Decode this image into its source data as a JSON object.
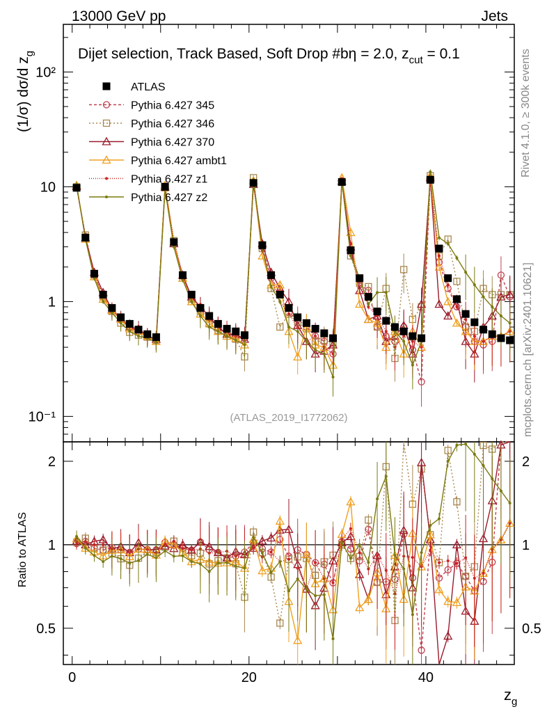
{
  "header": {
    "left": "13000 GeV pp",
    "right": "Jets"
  },
  "side_labels": {
    "rivet": "Rivet 4.1.0, ≥ 300k events",
    "mcplots": "mcplots.cern.ch [arXiv:2401.10621]"
  },
  "watermark": "(ATLAS_2019_I1772062)",
  "chart_data": {
    "type": "scatter",
    "title": "Dijet selection, Track Based, Soft Drop #bη = 2.0, z",
    "title_sub": "cut",
    "title_suffix": " = 0.1",
    "xlabel": "z",
    "xlabel_sub": "g",
    "ylabel": "(1/σ) dσ/d z",
    "ylabel_sub": "g",
    "ratio_ylabel": "Ratio to ATLAS",
    "xlim": [
      -1,
      50
    ],
    "ylim": [
      0.06,
      260
    ],
    "yscale": "log",
    "ratio_ylim": [
      0.37,
      2.35
    ],
    "x_ticks": [
      "0",
      "20",
      "40"
    ],
    "y_ticks": [
      "10⁻¹",
      "1",
      "10",
      "10²"
    ],
    "ratio_ticks": [
      "0.5",
      "1",
      "2"
    ],
    "x": [
      0.5,
      1.5,
      2.5,
      3.5,
      4.5,
      5.5,
      6.5,
      7.5,
      8.5,
      9.5,
      10.5,
      11.5,
      12.5,
      13.5,
      14.5,
      15.5,
      16.5,
      17.5,
      18.5,
      19.5,
      20.5,
      21.5,
      22.5,
      23.5,
      24.5,
      25.5,
      26.5,
      27.5,
      28.5,
      29.5,
      30.5,
      31.5,
      32.5,
      33.5,
      34.5,
      35.5,
      36.5,
      37.5,
      38.5,
      39.5,
      40.5,
      41.5,
      42.5,
      43.5,
      44.5,
      45.5,
      46.5,
      47.5,
      48.5,
      49.5
    ],
    "series": [
      {
        "name": "ATLAS",
        "color": "#000000",
        "marker": "square-filled",
        "dash": "none",
        "values": [
          9.8,
          3.6,
          1.75,
          1.15,
          0.88,
          0.73,
          0.64,
          0.57,
          0.52,
          0.49,
          10.0,
          3.3,
          1.7,
          1.15,
          0.88,
          0.75,
          0.64,
          0.58,
          0.55,
          0.51,
          10.8,
          3.1,
          1.7,
          1.15,
          0.88,
          0.73,
          0.65,
          0.58,
          0.53,
          0.48,
          11.0,
          2.8,
          1.6,
          1.1,
          0.82,
          0.68,
          0.6,
          0.55,
          0.5,
          0.48,
          11.5,
          2.9,
          1.6,
          1.05,
          0.78,
          0.66,
          0.57,
          0.52,
          0.48,
          0.46
        ]
      },
      {
        "name": "Pythia 6.427 345",
        "color": "#c04050",
        "marker": "circle-open",
        "dash": "4,3",
        "values": [
          9.9,
          3.7,
          1.7,
          1.1,
          0.86,
          0.7,
          0.6,
          0.55,
          0.5,
          0.47,
          10.2,
          3.3,
          1.65,
          1.1,
          0.9,
          0.72,
          0.6,
          0.52,
          0.5,
          0.48,
          11.0,
          3.0,
          1.6,
          1.2,
          0.8,
          0.7,
          0.6,
          0.5,
          0.45,
          0.35,
          11.3,
          2.7,
          1.4,
          1.25,
          0.6,
          0.5,
          0.45,
          0.6,
          0.38,
          0.2,
          11.8,
          2.2,
          1.3,
          0.9,
          0.6,
          0.45,
          0.42,
          0.45,
          1.7,
          1.1
        ]
      },
      {
        "name": "Pythia 6.427 346",
        "color": "#a88850",
        "marker": "square-open",
        "dash": "2,3",
        "values": [
          10.0,
          3.8,
          1.7,
          1.1,
          0.82,
          0.65,
          0.54,
          0.51,
          0.49,
          0.46,
          9.8,
          3.4,
          1.6,
          1.05,
          0.82,
          0.64,
          0.56,
          0.52,
          0.47,
          0.33,
          12.0,
          2.9,
          1.3,
          0.6,
          0.78,
          0.66,
          0.58,
          0.45,
          0.46,
          0.44,
          11.0,
          2.5,
          1.45,
          1.35,
          0.6,
          1.3,
          0.32,
          1.9,
          0.7,
          0.9,
          12.5,
          2.5,
          3.5,
          1.5,
          0.6,
          0.55,
          1.3,
          1.15,
          1.15,
          1.15
        ]
      },
      {
        "name": "Pythia 6.427 370",
        "color": "#9a1a2a",
        "marker": "triangle-open",
        "dash": "none",
        "values": [
          10.1,
          3.6,
          1.8,
          1.2,
          0.85,
          0.72,
          0.6,
          0.58,
          0.5,
          0.47,
          9.9,
          3.2,
          1.7,
          1.1,
          0.9,
          0.74,
          0.6,
          0.52,
          0.52,
          0.47,
          10.5,
          3.2,
          1.8,
          1.3,
          1.0,
          0.62,
          0.45,
          0.35,
          0.37,
          0.42,
          11.2,
          3.0,
          1.25,
          0.7,
          0.75,
          0.45,
          0.5,
          0.62,
          0.35,
          0.95,
          12.0,
          0.95,
          0.75,
          1.05,
          0.45,
          0.35,
          0.6,
          0.75,
          1.1,
          1.15
        ]
      },
      {
        "name": "Pythia 6.427 ambt1",
        "color": "#f0a020",
        "marker": "triangle-open",
        "dash": "none",
        "values": [
          10.3,
          3.5,
          1.65,
          1.05,
          0.84,
          0.7,
          0.58,
          0.55,
          0.5,
          0.45,
          10.3,
          3.3,
          1.6,
          1.0,
          0.78,
          0.65,
          0.55,
          0.5,
          0.48,
          0.42,
          11.3,
          2.5,
          1.4,
          1.4,
          0.55,
          0.33,
          0.6,
          0.42,
          0.4,
          0.28,
          12.0,
          4.0,
          0.95,
          0.7,
          0.65,
          0.4,
          0.55,
          0.35,
          0.55,
          0.4,
          12.5,
          2.0,
          1.0,
          0.65,
          0.55,
          0.45,
          0.45,
          0.5,
          0.5,
          0.55
        ]
      },
      {
        "name": "Pythia 6.427 z1",
        "color": "#cc2020",
        "marker": "dot",
        "dash": "1,2",
        "values": [
          10.0,
          3.7,
          1.75,
          1.15,
          0.85,
          0.7,
          0.6,
          0.55,
          0.5,
          0.46,
          10.0,
          3.4,
          1.65,
          1.1,
          0.85,
          0.7,
          0.6,
          0.55,
          0.5,
          0.46,
          10.5,
          2.8,
          1.6,
          1.0,
          0.78,
          0.6,
          0.45,
          0.5,
          0.4,
          0.35,
          11.5,
          3.2,
          1.5,
          0.9,
          0.75,
          0.55,
          0.4,
          0.5,
          0.45,
          0.4,
          11.0,
          2.5,
          1.4,
          0.9,
          0.7,
          0.5,
          0.45,
          0.5,
          0.5,
          0.55
        ]
      },
      {
        "name": "Pythia 6.427 z2",
        "color": "#7a7a10",
        "marker": "dot",
        "dash": "none",
        "values": [
          10.5,
          3.5,
          1.6,
          1.0,
          0.8,
          0.65,
          0.55,
          0.5,
          0.48,
          0.44,
          9.5,
          3.0,
          1.55,
          1.0,
          0.75,
          0.6,
          0.55,
          0.5,
          0.46,
          0.42,
          11.5,
          2.9,
          1.35,
          1.0,
          0.6,
          0.55,
          0.45,
          0.38,
          0.35,
          0.22,
          11.2,
          2.5,
          1.6,
          0.95,
          1.2,
          1.2,
          0.55,
          0.45,
          0.28,
          0.45,
          13.5,
          3.6,
          3.2,
          2.4,
          1.8,
          1.4,
          1.1,
          0.9,
          0.75,
          0.65
        ]
      }
    ]
  }
}
